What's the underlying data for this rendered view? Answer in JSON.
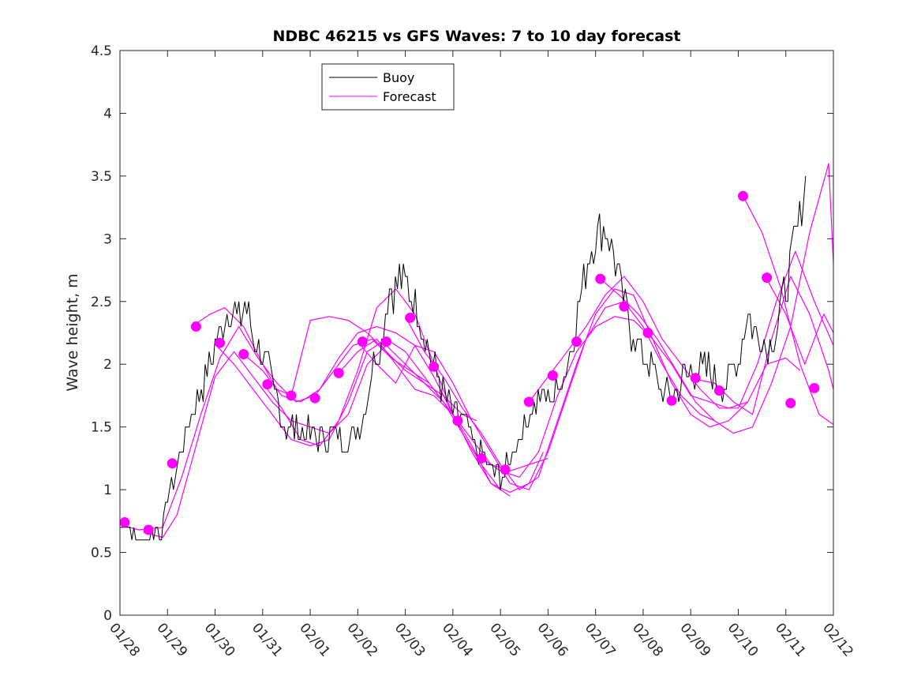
{
  "chart_data": {
    "type": "line",
    "title": "NDBC 46215 vs GFS Waves: 7 to 10 day forecast",
    "ylabel": "Wave height, m",
    "xlabel": "",
    "ylim": [
      0,
      4.5
    ],
    "xlim": [
      0,
      15
    ],
    "yticks": [
      0,
      0.5,
      1,
      1.5,
      2,
      2.5,
      3,
      3.5,
      4,
      4.5
    ],
    "ytick_labels": [
      "0",
      "0.5",
      "1",
      "1.5",
      "2",
      "2.5",
      "3",
      "3.5",
      "4",
      "4.5"
    ],
    "xticks": [
      0,
      1,
      2,
      3,
      4,
      5,
      6,
      7,
      8,
      9,
      10,
      11,
      12,
      13,
      14,
      15
    ],
    "xtick_labels": [
      "01/28",
      "01/29",
      "01/30",
      "01/31",
      "02/01",
      "02/02",
      "02/03",
      "02/04",
      "02/05",
      "02/06",
      "02/07",
      "02/08",
      "02/09",
      "02/10",
      "02/11",
      "02/12"
    ],
    "legend": {
      "location": "top-left",
      "entries": [
        {
          "label": "Buoy",
          "color": "#000000"
        },
        {
          "label": "Forecast",
          "color": "#ff00ff"
        }
      ]
    },
    "colors": {
      "buoy": "#000000",
      "forecast": "#ff00ff",
      "axes": "#262626"
    },
    "buoy": {
      "name": "Buoy",
      "x": [
        0,
        0.1,
        0.25,
        0.5,
        0.7,
        0.9,
        1.0,
        1.2,
        1.4,
        1.6,
        1.75,
        1.9,
        2.05,
        2.2,
        2.35,
        2.5,
        2.65,
        2.8,
        3.0,
        3.2,
        3.35,
        3.5,
        3.7,
        3.9,
        4.1,
        4.3,
        4.5,
        4.7,
        4.9,
        5.05,
        5.2,
        5.35,
        5.5,
        5.65,
        5.8,
        5.95,
        6.1,
        6.25,
        6.4,
        6.6,
        6.8,
        7.0,
        7.2,
        7.4,
        7.55,
        7.7,
        7.85,
        8.0,
        8.15,
        8.3,
        8.5,
        8.7,
        8.9,
        9.1,
        9.3,
        9.5,
        9.65,
        9.8,
        9.95,
        10.1,
        10.25,
        10.4,
        10.55,
        10.7,
        10.85,
        11.0,
        11.2,
        11.4,
        11.6,
        11.8,
        12.0,
        12.2,
        12.4,
        12.6,
        12.8,
        13.0,
        13.2,
        13.4,
        13.6,
        13.8,
        14.0,
        14.15,
        14.3,
        14.45
      ],
      "values": [
        0.75,
        0.7,
        0.65,
        0.6,
        0.65,
        0.7,
        0.95,
        1.2,
        1.45,
        1.7,
        1.85,
        2.0,
        2.2,
        2.4,
        2.45,
        2.35,
        2.5,
        2.2,
        2.05,
        1.85,
        1.65,
        1.5,
        1.5,
        1.45,
        1.45,
        1.4,
        1.45,
        1.4,
        1.45,
        1.5,
        1.75,
        2.1,
        2.2,
        2.55,
        2.65,
        2.7,
        2.6,
        2.45,
        2.25,
        2.0,
        1.8,
        1.6,
        1.55,
        1.4,
        1.3,
        1.2,
        1.15,
        1.1,
        1.2,
        1.35,
        1.5,
        1.7,
        1.75,
        1.75,
        1.9,
        2.15,
        2.45,
        2.75,
        3.0,
        3.1,
        3.05,
        2.85,
        2.55,
        2.3,
        2.2,
        2.05,
        2.0,
        1.75,
        1.75,
        1.85,
        1.95,
        1.95,
        1.95,
        1.85,
        1.9,
        2.05,
        2.4,
        2.25,
        2.15,
        2.3,
        2.6,
        2.9,
        3.2,
        3.5
      ]
    },
    "forecast_lines": [
      {
        "x": [
          0,
          0.4,
          0.9,
          1.3,
          1.7,
          2.1,
          2.5,
          2.9,
          3.3,
          3.7,
          4.1,
          4.5,
          4.9,
          5.3,
          5.7,
          6.1,
          6.5
        ],
        "values": [
          0.72,
          0.68,
          0.7,
          1.1,
          1.6,
          2.05,
          2.3,
          2.05,
          1.85,
          1.7,
          1.75,
          1.95,
          2.15,
          2.2,
          2.05,
          1.95,
          1.85
        ]
      },
      {
        "x": [
          0.5,
          0.9,
          1.2,
          1.6,
          2.0,
          2.4,
          2.8,
          3.2,
          3.6,
          4.0,
          4.4,
          4.8,
          5.2,
          5.6,
          6.0,
          6.4,
          6.8,
          7.0
        ],
        "values": [
          0.66,
          0.62,
          0.8,
          1.35,
          1.9,
          2.1,
          1.9,
          1.7,
          1.55,
          1.5,
          1.45,
          1.6,
          2.0,
          2.15,
          2.0,
          1.85,
          1.7,
          1.6
        ]
      },
      {
        "x": [
          1.5,
          1.9,
          2.2,
          2.6,
          3.0,
          3.3,
          3.6,
          4.0,
          4.4,
          4.8,
          5.2,
          5.6,
          6.0,
          6.4,
          6.8,
          7.2,
          7.5
        ],
        "values": [
          2.3,
          2.4,
          2.45,
          2.3,
          2.0,
          1.8,
          1.75,
          2.35,
          2.38,
          2.35,
          2.25,
          2.1,
          1.95,
          1.85,
          1.75,
          1.6,
          1.55
        ]
      },
      {
        "x": [
          2.0,
          2.4,
          2.8,
          3.2,
          3.6,
          4.0,
          4.4,
          4.8,
          5.2,
          5.6,
          6.0,
          6.4,
          6.8,
          7.2,
          7.6,
          8.0
        ],
        "values": [
          2.16,
          2.0,
          1.8,
          1.6,
          1.4,
          1.35,
          1.4,
          1.7,
          2.1,
          2.2,
          2.1,
          1.9,
          1.7,
          1.45,
          1.2,
          1.0
        ]
      },
      {
        "x": [
          2.6,
          3.0,
          3.4,
          3.8,
          4.2,
          4.6,
          5.0,
          5.4,
          5.8,
          6.2,
          6.6,
          7.0,
          7.4,
          7.8,
          8.2
        ],
        "values": [
          2.08,
          1.95,
          1.75,
          1.7,
          1.8,
          2.05,
          2.25,
          2.3,
          2.25,
          2.15,
          1.9,
          1.6,
          1.3,
          1.05,
          0.95
        ]
      },
      {
        "x": [
          3.0,
          3.4,
          3.8,
          4.2,
          4.6,
          5.0,
          5.4,
          5.8,
          6.2,
          6.6,
          7.0,
          7.4,
          7.8,
          8.2,
          8.6,
          8.9
        ],
        "values": [
          1.85,
          1.65,
          1.4,
          1.35,
          1.55,
          1.95,
          2.45,
          2.6,
          2.4,
          2.0,
          1.6,
          1.35,
          1.05,
          0.98,
          1.05,
          1.3
        ]
      },
      {
        "x": [
          4.6,
          5.0,
          5.4,
          5.8,
          6.2,
          6.6,
          7.0,
          7.4,
          7.8,
          8.2,
          8.6,
          9.0
        ],
        "values": [
          1.93,
          2.1,
          2.2,
          2.0,
          1.8,
          1.75,
          1.6,
          1.4,
          1.2,
          1.15,
          1.2,
          1.25
        ]
      },
      {
        "x": [
          5.0,
          5.4,
          5.8,
          6.2,
          6.6,
          7.0,
          7.4,
          7.8,
          8.2,
          8.6,
          9.0,
          9.4,
          9.8,
          10.2,
          10.6,
          11.0,
          11.4,
          11.8,
          12.2,
          12.5
        ],
        "values": [
          2.18,
          2.0,
          1.85,
          2.15,
          2.1,
          1.85,
          1.55,
          1.3,
          1.05,
          1.0,
          1.3,
          1.75,
          2.2,
          2.45,
          2.5,
          2.3,
          2.0,
          1.75,
          1.6,
          1.55
        ]
      },
      {
        "x": [
          6.0,
          6.4,
          6.8,
          7.2,
          7.6,
          8.0,
          8.4,
          8.8,
          9.2,
          9.6,
          10.0,
          10.4,
          10.8,
          11.2,
          11.6,
          12.0,
          12.4,
          12.8,
          13.2
        ],
        "values": [
          2.38,
          2.1,
          1.9,
          1.65,
          1.45,
          1.2,
          1.0,
          1.1,
          1.55,
          2.0,
          2.4,
          2.6,
          2.55,
          2.2,
          1.85,
          1.6,
          1.5,
          1.55,
          1.7
        ]
      },
      {
        "x": [
          7.6,
          8.0,
          8.4,
          8.8,
          9.2,
          9.6,
          10.0,
          10.4,
          10.8,
          11.2,
          11.6,
          12.0,
          12.4,
          12.8,
          13.2,
          13.6,
          14.0,
          14.3
        ],
        "values": [
          1.25,
          1.15,
          1.1,
          1.3,
          1.75,
          2.1,
          2.3,
          2.38,
          2.35,
          2.2,
          2.0,
          1.75,
          1.7,
          1.65,
          1.7,
          2.0,
          2.05,
          1.95
        ]
      },
      {
        "x": [
          8.6,
          9.0,
          9.4,
          9.8,
          10.2,
          10.6,
          11.0,
          11.4,
          11.8,
          12.2,
          12.6,
          13.0,
          13.4,
          13.8,
          14.2,
          14.6,
          15.0
        ],
        "values": [
          1.7,
          1.9,
          2.1,
          2.3,
          2.55,
          2.7,
          2.5,
          2.2,
          2.0,
          1.8,
          1.65,
          1.65,
          2.0,
          2.5,
          2.9,
          2.5,
          2.15
        ]
      },
      {
        "x": [
          10.1,
          10.5,
          10.9,
          11.3,
          11.7,
          12.1,
          12.5,
          12.9,
          13.3,
          13.7,
          14.1,
          14.5,
          14.9,
          15.0
        ],
        "values": [
          2.68,
          2.55,
          2.4,
          2.2,
          1.95,
          1.7,
          1.55,
          1.45,
          1.5,
          1.85,
          2.3,
          3.05,
          3.6,
          2.8
        ]
      },
      {
        "x": [
          12.1,
          12.5,
          12.9,
          13.3,
          13.7,
          14.1,
          14.5,
          14.9,
          15.0
        ],
        "values": [
          1.88,
          1.85,
          1.7,
          1.6,
          2.2,
          2.7,
          2.4,
          1.95,
          1.8
        ]
      },
      {
        "x": [
          13.1,
          13.5,
          13.9,
          14.3,
          14.7,
          15.0
        ],
        "values": [
          3.34,
          3.05,
          2.6,
          2.0,
          1.6,
          1.52
        ]
      },
      {
        "x": [
          13.6,
          14.0,
          14.4,
          14.8,
          15.0
        ],
        "values": [
          2.68,
          2.4,
          2.0,
          2.4,
          2.25
        ]
      }
    ],
    "forecast_points": {
      "x": [
        0.1,
        0.6,
        1.1,
        1.6,
        2.1,
        2.6,
        3.1,
        3.6,
        4.1,
        4.6,
        5.1,
        5.6,
        6.1,
        6.6,
        7.1,
        7.6,
        8.1,
        8.6,
        9.1,
        9.6,
        10.1,
        10.6,
        11.1,
        11.6,
        12.1,
        12.6,
        13.1,
        13.6,
        14.1,
        14.6
      ],
      "values": [
        0.74,
        0.68,
        1.21,
        2.3,
        2.17,
        2.08,
        1.84,
        1.75,
        1.73,
        1.93,
        2.18,
        2.18,
        2.37,
        1.98,
        1.55,
        1.25,
        1.16,
        1.7,
        1.91,
        2.18,
        2.68,
        2.46,
        2.25,
        1.71,
        1.89,
        1.79,
        3.34,
        2.69,
        1.69,
        1.81
      ]
    }
  }
}
